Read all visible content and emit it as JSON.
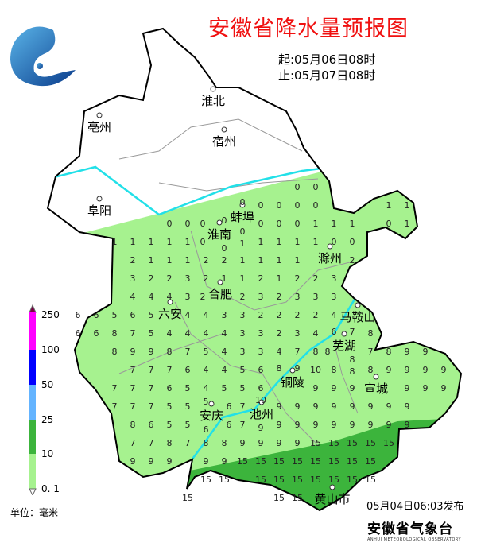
{
  "title": "安徽省降水量预报图",
  "period": {
    "start": "起:05月06日08时",
    "end": "止:05月07日08时"
  },
  "issued": "05月04日06:03发布",
  "organization": {
    "name": "安徽省气象台",
    "name_en": "ANHUI METEOROLOGICAL OBSERVATORY",
    "logo_icon": "weather-bureau-logo"
  },
  "legend": {
    "unit": "单位：毫米",
    "ticks": [
      "250",
      "100",
      "50",
      "25",
      "10",
      "0. 1"
    ],
    "colors": [
      "#ff00ff",
      "#0000ff",
      "#64b4ff",
      "#3cb43c",
      "#a6f28f"
    ],
    "top_arrow_color": "#7a0044"
  },
  "map_colors": {
    "outside_forecast": "#ffffff",
    "light": "#a6f28f",
    "dark": "#3cb43c",
    "river": "#22e0e8"
  },
  "cities": [
    "亳州",
    "淮北",
    "宿州",
    "阜阳",
    "蚌埠",
    "淮南",
    "滁州",
    "合肥",
    "六安",
    "马鞍山",
    "芜湖",
    "铜陵",
    "宣城",
    "安庆",
    "池州",
    "黄山市"
  ],
  "grid": [
    [
      null,
      null,
      null,
      null,
      null,
      null,
      null,
      null,
      null,
      null,
      null,
      null,
      0,
      0,
      null,
      null,
      null,
      null,
      null,
      null,
      null
    ],
    [
      null,
      null,
      null,
      null,
      null,
      null,
      null,
      null,
      null,
      0,
      0,
      0,
      0,
      0,
      null,
      null,
      null,
      1,
      1,
      null,
      null
    ],
    [
      null,
      null,
      null,
      null,
      null,
      0,
      0,
      0,
      0,
      0,
      0,
      0,
      0,
      1,
      1,
      1,
      null,
      0,
      1,
      null,
      null
    ],
    [
      null,
      null,
      1,
      1,
      1,
      1,
      1,
      0,
      0,
      1,
      1,
      1,
      1,
      1,
      0,
      0,
      null,
      null,
      null,
      null,
      null
    ],
    [
      null,
      null,
      null,
      2,
      1,
      1,
      1,
      2,
      2,
      1,
      1,
      1,
      1,
      null,
      null,
      2,
      null,
      null,
      null,
      null,
      null
    ],
    [
      null,
      null,
      null,
      3,
      2,
      2,
      3,
      2,
      1,
      1,
      2,
      1,
      2,
      2,
      3,
      null,
      null,
      null,
      null,
      null,
      null
    ],
    [
      null,
      null,
      null,
      4,
      4,
      4,
      3,
      2,
      null,
      2,
      3,
      2,
      3,
      3,
      3,
      null,
      null,
      null,
      null,
      null,
      null
    ],
    [
      6,
      6,
      5,
      6,
      5,
      null,
      4,
      4,
      3,
      3,
      2,
      2,
      2,
      2,
      4,
      null,
      null,
      null,
      null,
      null,
      null
    ],
    [
      6,
      6,
      8,
      7,
      5,
      4,
      4,
      4,
      4,
      3,
      3,
      2,
      3,
      4,
      6,
      7,
      8,
      null,
      null,
      null,
      null
    ],
    [
      null,
      null,
      8,
      9,
      9,
      8,
      7,
      5,
      4,
      3,
      3,
      4,
      7,
      8,
      8,
      8,
      7,
      8,
      9,
      9,
      null
    ],
    [
      null,
      null,
      null,
      7,
      7,
      7,
      6,
      4,
      4,
      5,
      6,
      8,
      9,
      10,
      8,
      8,
      8,
      9,
      9,
      9,
      9
    ],
    [
      null,
      null,
      7,
      7,
      7,
      6,
      5,
      4,
      5,
      5,
      6,
      null,
      null,
      9,
      9,
      9,
      null,
      null,
      9,
      9,
      9
    ],
    [
      null,
      null,
      7,
      7,
      7,
      5,
      5,
      5,
      6,
      7,
      10,
      9,
      9,
      9,
      9,
      9,
      9,
      9,
      9,
      null,
      null
    ],
    [
      null,
      null,
      null,
      8,
      6,
      5,
      5,
      6,
      6,
      7,
      9,
      9,
      9,
      9,
      9,
      9,
      9,
      9,
      9,
      null,
      null
    ],
    [
      null,
      null,
      null,
      7,
      7,
      8,
      7,
      8,
      8,
      9,
      9,
      9,
      9,
      15,
      15,
      15,
      15,
      15,
      null,
      null,
      null
    ],
    [
      null,
      null,
      null,
      9,
      9,
      9,
      null,
      9,
      9,
      15,
      15,
      15,
      15,
      15,
      15,
      15,
      15,
      null,
      null,
      null,
      null
    ],
    [
      null,
      null,
      null,
      null,
      null,
      null,
      null,
      15,
      15,
      null,
      15,
      15,
      15,
      15,
      15,
      15,
      15,
      null,
      null,
      null,
      null
    ],
    [
      null,
      null,
      null,
      null,
      null,
      null,
      15,
      null,
      null,
      null,
      null,
      15,
      15,
      null,
      null,
      null,
      null,
      null,
      null,
      null,
      null
    ]
  ]
}
